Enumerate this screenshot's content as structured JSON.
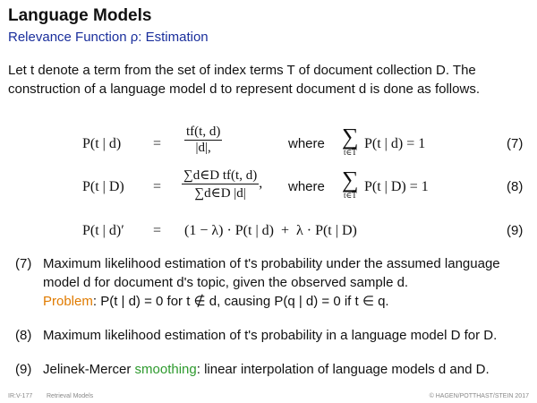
{
  "header": {
    "title": "Language Models",
    "subtitle": "Relevance Function ρ: Estimation"
  },
  "intro": {
    "line1": "Let t denote a term from the set of index terms T of document collection D. The",
    "line2": "construction of a language model d to represent document d is done as follows."
  },
  "equations": [
    {
      "lhs": "P(t | d)",
      "eq": "=",
      "num": "tf(t, d)",
      "den": "|d|,",
      "where": "where",
      "sum_sub": "t∈T",
      "sum_expr": "P(t | d) = 1",
      "number": "(7)"
    },
    {
      "lhs": "P(t | D)",
      "eq": "=",
      "num": "∑d∈D tf(t, d)",
      "den": "∑d∈D |d|",
      "den_suffix": ",",
      "where": "where",
      "sum_sub": "t∈T",
      "sum_expr": "P(t | D) = 1",
      "number": "(8)"
    },
    {
      "lhs": "P(t | d)′",
      "eq": "=",
      "rhs": "(1 − λ) · P(t | d)  +  λ · P(t | D)",
      "number": "(9)"
    }
  ],
  "notes": [
    {
      "number": "(7)",
      "line1": "Maximum likelihood estimation of t's probability under the assumed language",
      "line2": "model d for document d's topic, given the observed sample d.",
      "problem_label": "Problem",
      "problem_text": ": P(t | d) = 0 for t ∉ d, causing P(q | d) = 0 if t ∈ q."
    },
    {
      "number": "(8)",
      "line1": "Maximum likelihood estimation of t's probability in a language model D for D."
    },
    {
      "number": "(9)",
      "pre": "Jelinek-Mercer ",
      "highlight": "smoothing",
      "post": ": linear interpolation of language models d and D."
    }
  ],
  "footer": {
    "page": "IR:V-177",
    "section": "Retrieval Models",
    "copyright": "© HAGEN/POTTHAST/STEIN 2017"
  },
  "colors": {
    "subtitle": "#1a2f9c",
    "problem": "#e07b00",
    "smoothing": "#2e9a2e"
  }
}
